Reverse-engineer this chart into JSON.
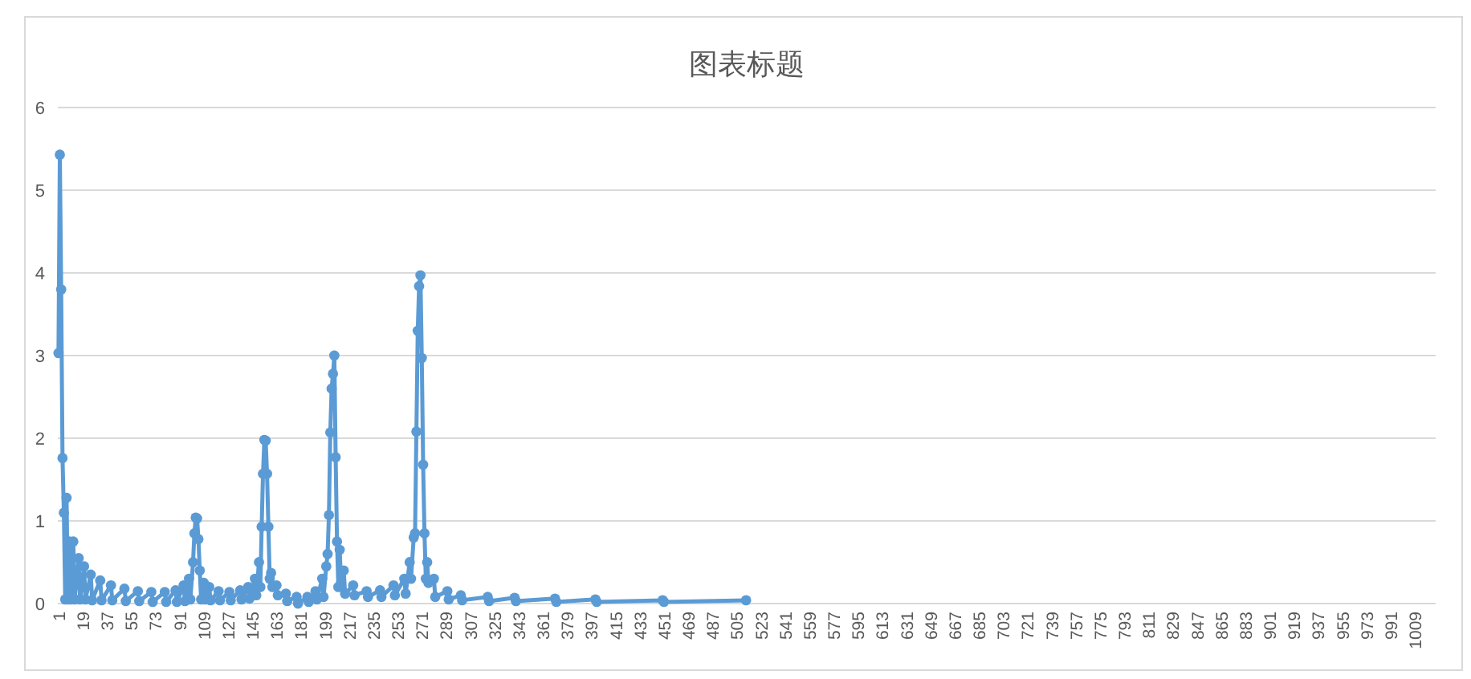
{
  "chart_data": {
    "type": "line",
    "title": "图表标题",
    "color": "#5b9bd5",
    "marker": "circle",
    "grid": "y",
    "xlim": [
      0.5,
      1024.5
    ],
    "ylim": [
      0,
      6
    ],
    "yticks": [
      0,
      1,
      2,
      3,
      4,
      5,
      6
    ],
    "xticks": [
      1,
      19,
      37,
      55,
      73,
      91,
      109,
      127,
      145,
      163,
      181,
      199,
      217,
      235,
      253,
      271,
      289,
      307,
      325,
      343,
      361,
      379,
      397,
      415,
      433,
      451,
      469,
      487,
      505,
      523,
      541,
      559,
      577,
      595,
      613,
      631,
      649,
      667,
      685,
      703,
      721,
      739,
      757,
      775,
      793,
      811,
      829,
      847,
      865,
      883,
      901,
      919,
      937,
      955,
      973,
      991,
      1009
    ],
    "x": [
      1,
      2,
      3,
      4,
      5,
      6,
      7,
      8,
      9,
      10,
      12,
      13,
      16,
      17,
      20,
      21,
      25,
      26,
      32,
      33,
      40,
      41,
      50,
      51,
      60,
      61,
      70,
      71,
      80,
      81,
      88,
      89,
      94,
      95,
      98,
      99,
      101,
      102,
      103,
      104,
      105,
      106,
      107,
      109,
      110,
      113,
      114,
      120,
      121,
      128,
      129,
      136,
      137,
      142,
      143,
      147,
      148,
      150,
      151,
      152,
      153,
      154,
      155,
      156,
      157,
      158,
      159,
      160,
      163,
      164,
      170,
      171,
      178,
      179,
      186,
      187,
      192,
      193,
      197,
      198,
      200,
      201,
      202,
      203,
      204,
      205,
      206,
      207,
      208,
      209,
      210,
      211,
      213,
      214,
      220,
      221,
      230,
      231,
      240,
      241,
      250,
      251,
      258,
      259,
      262,
      263,
      265,
      266,
      267,
      268,
      269,
      270,
      271,
      272,
      273,
      274,
      275,
      276,
      280,
      281,
      290,
      291,
      300,
      301,
      320,
      321,
      340,
      341,
      370,
      371,
      400,
      401,
      450,
      451,
      512
    ],
    "values": [
      3.03,
      5.43,
      3.8,
      1.76,
      1.1,
      0.05,
      1.28,
      0.05,
      0.75,
      0.05,
      0.75,
      0.05,
      0.55,
      0.05,
      0.45,
      0.05,
      0.35,
      0.04,
      0.28,
      0.04,
      0.22,
      0.04,
      0.18,
      0.03,
      0.15,
      0.03,
      0.14,
      0.02,
      0.14,
      0.02,
      0.16,
      0.02,
      0.22,
      0.03,
      0.3,
      0.05,
      0.5,
      0.85,
      1.04,
      1.03,
      0.78,
      0.4,
      0.05,
      0.25,
      0.05,
      0.2,
      0.04,
      0.15,
      0.04,
      0.14,
      0.04,
      0.16,
      0.05,
      0.2,
      0.06,
      0.3,
      0.1,
      0.5,
      0.2,
      0.93,
      1.57,
      1.98,
      1.97,
      1.57,
      0.93,
      0.3,
      0.37,
      0.2,
      0.22,
      0.1,
      0.12,
      0.03,
      0.08,
      0.0,
      0.08,
      0.02,
      0.15,
      0.05,
      0.3,
      0.08,
      0.45,
      0.6,
      1.07,
      2.07,
      2.6,
      2.78,
      3.0,
      1.77,
      0.75,
      0.2,
      0.65,
      0.25,
      0.4,
      0.12,
      0.22,
      0.1,
      0.15,
      0.08,
      0.16,
      0.08,
      0.22,
      0.1,
      0.3,
      0.12,
      0.5,
      0.3,
      0.8,
      0.85,
      2.08,
      3.3,
      3.84,
      3.97,
      2.97,
      1.68,
      0.85,
      0.3,
      0.5,
      0.25,
      0.3,
      0.08,
      0.15,
      0.05,
      0.1,
      0.04,
      0.08,
      0.03,
      0.07,
      0.03,
      0.06,
      0.02,
      0.05,
      0.02,
      0.04,
      0.02,
      0.04
    ]
  }
}
